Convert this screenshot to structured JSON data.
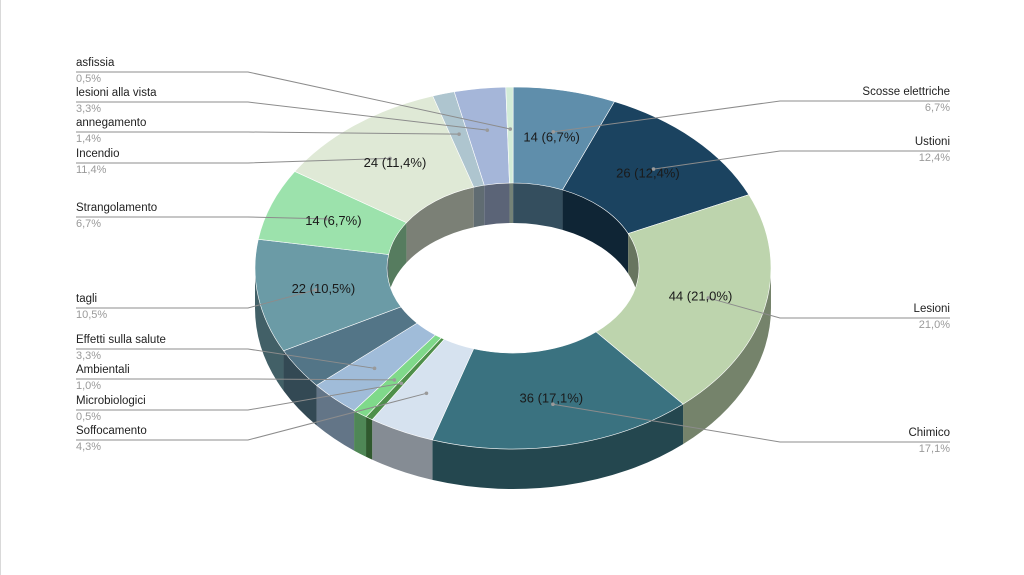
{
  "chart_data": {
    "type": "pie",
    "variant": "3d-donut",
    "title": "",
    "legend": "none",
    "slices": [
      {
        "label": "Scosse elettriche",
        "value": 14,
        "percent": "6,7%",
        "inner_label": "14 (6,7%)",
        "color": "#5f8eab"
      },
      {
        "label": "Ustioni",
        "value": 26,
        "percent": "12,4%",
        "inner_label": "26 (12,4%)",
        "color": "#1b4360"
      },
      {
        "label": "Lesioni",
        "value": 44,
        "percent": "21,0%",
        "inner_label": "44 (21,0%)",
        "color": "#bdd4ad"
      },
      {
        "label": "Chimico",
        "value": 36,
        "percent": "17,1%",
        "inner_label": "36 (17,1%)",
        "color": "#3a7280"
      },
      {
        "label": "Soffocamento",
        "value": 9,
        "percent": "4,3%",
        "inner_label": "",
        "color": "#d6e2ef"
      },
      {
        "label": "Microbiologici",
        "value": 1,
        "percent": "0,5%",
        "inner_label": "",
        "color": "#4e8f4a"
      },
      {
        "label": "Ambientali",
        "value": 2,
        "percent": "1,0%",
        "inner_label": "",
        "color": "#7fd98a"
      },
      {
        "label": "Effetti sulla salute",
        "value": 7,
        "percent": "3,3%",
        "inner_label": "",
        "color": "#a0bcd9"
      },
      {
        "label": "",
        "value": 8,
        "percent": "",
        "inner_label": "",
        "color": "#537587"
      },
      {
        "label": "tagli",
        "value": 22,
        "percent": "10,5%",
        "inner_label": "22 (10,5%)",
        "color": "#6b9ba6"
      },
      {
        "label": "Strangolamento",
        "value": 14,
        "percent": "6,7%",
        "inner_label": "14 (6,7%)",
        "color": "#9ce2ac"
      },
      {
        "label": "Incendio",
        "value": 24,
        "percent": "11,4%",
        "inner_label": "24 (11,4%)",
        "color": "#dfe9d6"
      },
      {
        "label": "annegamento",
        "value": 3,
        "percent": "1,4%",
        "inner_label": "",
        "color": "#aec5cf"
      },
      {
        "label": "lesioni alla vista",
        "value": 7,
        "percent": "3,3%",
        "inner_label": "",
        "color": "#a5b6d9"
      },
      {
        "label": "asfissia",
        "value": 1,
        "percent": "0,5%",
        "inner_label": "",
        "color": "#d3ecd8"
      }
    ]
  }
}
